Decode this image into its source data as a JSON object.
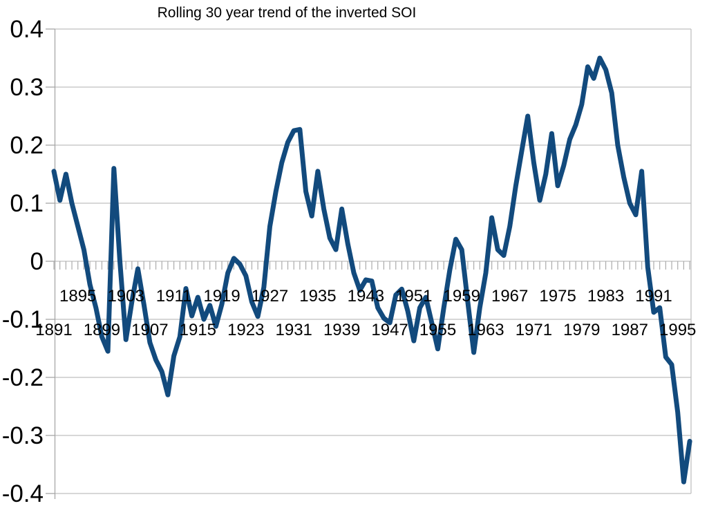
{
  "chart_data": {
    "type": "line",
    "title": "Rolling 30 year trend of the inverted SOI",
    "xlabel": "",
    "ylabel": "",
    "ylim": [
      -0.4,
      0.4
    ],
    "y_ticks": [
      0.4,
      0.3,
      0.2,
      0.1,
      0,
      -0.1,
      -0.2,
      -0.3,
      -0.4
    ],
    "x_tick_row_upper": [
      1895,
      1903,
      1911,
      1919,
      1927,
      1935,
      1943,
      1951,
      1959,
      1967,
      1975,
      1983,
      1991
    ],
    "x_tick_row_lower": [
      1891,
      1899,
      1907,
      1915,
      1923,
      1931,
      1939,
      1947,
      1955,
      1963,
      1971,
      1979,
      1987,
      1995
    ],
    "grid": "horizontal",
    "legend": "none",
    "series": [
      {
        "name": "Rolling 30 year trend of the inverted SOI",
        "color": "#124A7D",
        "years": [
          1891,
          1892,
          1893,
          1894,
          1895,
          1896,
          1897,
          1898,
          1899,
          1900,
          1901,
          1902,
          1903,
          1904,
          1905,
          1906,
          1907,
          1908,
          1909,
          1910,
          1911,
          1912,
          1913,
          1914,
          1915,
          1916,
          1917,
          1918,
          1919,
          1920,
          1921,
          1922,
          1923,
          1924,
          1925,
          1926,
          1927,
          1928,
          1929,
          1930,
          1931,
          1932,
          1933,
          1934,
          1935,
          1936,
          1937,
          1938,
          1939,
          1940,
          1941,
          1942,
          1943,
          1944,
          1945,
          1946,
          1947,
          1948,
          1949,
          1950,
          1951,
          1952,
          1953,
          1954,
          1955,
          1956,
          1957,
          1958,
          1959,
          1960,
          1961,
          1962,
          1963,
          1964,
          1965,
          1966,
          1967,
          1968,
          1969,
          1970,
          1971,
          1972,
          1973,
          1974,
          1975,
          1976,
          1977,
          1978,
          1979,
          1980,
          1981,
          1982,
          1983,
          1984,
          1985,
          1986,
          1987,
          1988,
          1989,
          1990,
          1991,
          1992,
          1993,
          1994,
          1995,
          1996,
          1997
        ],
        "values": [
          0.155,
          0.105,
          0.15,
          0.1,
          0.06,
          0.02,
          -0.04,
          -0.08,
          -0.13,
          -0.155,
          0.16,
          0.0,
          -0.135,
          -0.07,
          -0.013,
          -0.074,
          -0.14,
          -0.17,
          -0.19,
          -0.23,
          -0.163,
          -0.13,
          -0.047,
          -0.094,
          -0.062,
          -0.1,
          -0.076,
          -0.112,
          -0.074,
          -0.02,
          0.005,
          -0.005,
          -0.025,
          -0.07,
          -0.095,
          -0.045,
          0.06,
          0.12,
          0.17,
          0.205,
          0.225,
          0.227,
          0.12,
          0.078,
          0.155,
          0.09,
          0.04,
          0.02,
          0.09,
          0.03,
          -0.02,
          -0.05,
          -0.032,
          -0.034,
          -0.08,
          -0.098,
          -0.106,
          -0.058,
          -0.048,
          -0.086,
          -0.137,
          -0.08,
          -0.062,
          -0.106,
          -0.151,
          -0.08,
          -0.015,
          0.038,
          0.02,
          -0.07,
          -0.157,
          -0.08,
          -0.02,
          0.075,
          0.02,
          0.01,
          0.06,
          0.13,
          0.19,
          0.25,
          0.17,
          0.105,
          0.15,
          0.22,
          0.13,
          0.165,
          0.21,
          0.235,
          0.27,
          0.335,
          0.315,
          0.35,
          0.33,
          0.29,
          0.2,
          0.145,
          0.1,
          0.08,
          0.155,
          -0.01,
          -0.088,
          -0.08,
          -0.165,
          -0.178,
          -0.26,
          -0.38,
          -0.31
        ]
      }
    ],
    "colors": {
      "line": "#124A7D",
      "gridline": "#BFBFBF",
      "axis": "#A6A6A6",
      "category_tick": "#ABABAB",
      "text": "#000000",
      "background": "#FFFFFF"
    }
  }
}
